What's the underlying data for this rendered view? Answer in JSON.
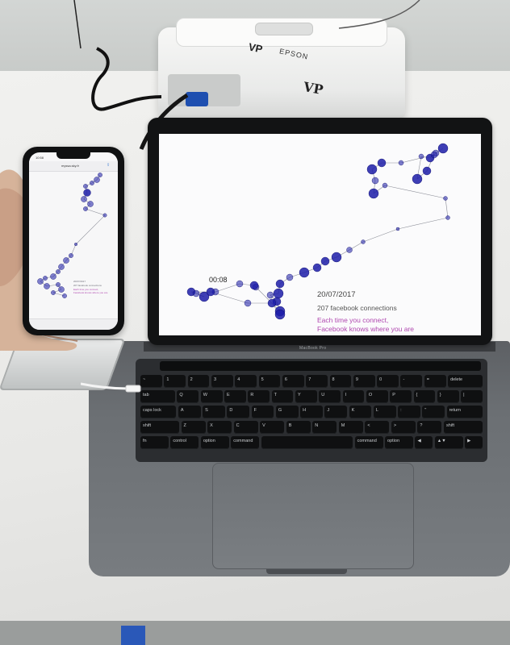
{
  "projector": {
    "brand": "EPSON",
    "logo": "VP",
    "logo_alt": "VP"
  },
  "laptop": {
    "bezel_label": "MacBook Pro",
    "screen": {
      "timer": "00:08",
      "date": "20/07/2017",
      "connections": "207 facebook connections",
      "message_line1": "Each time you connect,",
      "message_line2": "Facebook knows where you are",
      "accent_color": "#b048b0",
      "point_color": "#1c1ca8"
    },
    "keyboard": {
      "row1": [
        "~",
        "1",
        "2",
        "3",
        "4",
        "5",
        "6",
        "7",
        "8",
        "9",
        "0",
        "-",
        "=",
        "delete"
      ],
      "row2": [
        "tab",
        "Q",
        "W",
        "E",
        "R",
        "T",
        "Y",
        "U",
        "I",
        "O",
        "P",
        "{",
        "}",
        "|"
      ],
      "row3": [
        "caps lock",
        "A",
        "S",
        "D",
        "F",
        "G",
        "H",
        "J",
        "K",
        "L",
        ":",
        "\"",
        "return"
      ],
      "row4": [
        "shift",
        "Z",
        "X",
        "C",
        "V",
        "B",
        "N",
        "M",
        "<",
        ">",
        "?",
        "shift"
      ],
      "row5": [
        "fn",
        "control",
        "option",
        "command",
        "",
        "command",
        "option",
        "◀",
        "▲▼",
        "▶"
      ]
    }
  },
  "phone": {
    "status_time": "10:58",
    "url": "myssa.sky.fr",
    "share_icon": "share-icon",
    "date": "20/07/2017",
    "connections": "207 facebook connections",
    "message_line1": "Each time you connect,",
    "message_line2": "Facebook knows where you are"
  }
}
